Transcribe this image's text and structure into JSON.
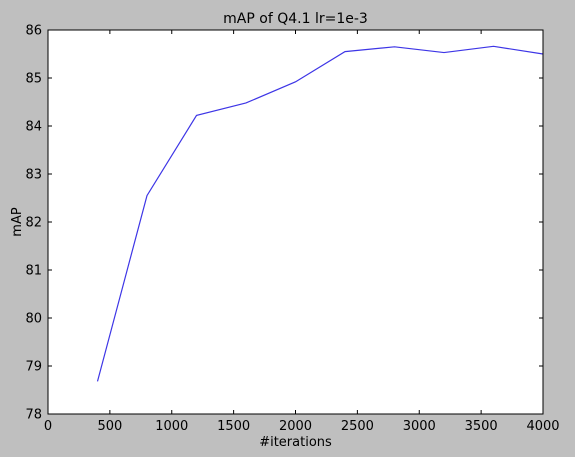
{
  "chart_data": {
    "type": "line",
    "title": "mAP of Q4.1 lr=1e-3",
    "xlabel": "#iterations",
    "ylabel": "mAP",
    "xlim": [
      0,
      4000
    ],
    "ylim": [
      78,
      86
    ],
    "grid": false,
    "x_ticks": [
      "0",
      "500",
      "1000",
      "1500",
      "2000",
      "2500",
      "3000",
      "3500",
      "4000"
    ],
    "y_ticks": [
      "78",
      "79",
      "80",
      "81",
      "82",
      "83",
      "84",
      "85",
      "86"
    ],
    "line_color": "#3d35e6",
    "series": [
      {
        "x": [
          400,
          800,
          1200,
          1600,
          2000,
          2400,
          2800,
          3200,
          3600,
          4000
        ],
        "y": [
          78.68,
          82.55,
          84.22,
          84.48,
          84.92,
          85.55,
          85.65,
          85.53,
          85.66,
          85.5
        ]
      }
    ]
  }
}
